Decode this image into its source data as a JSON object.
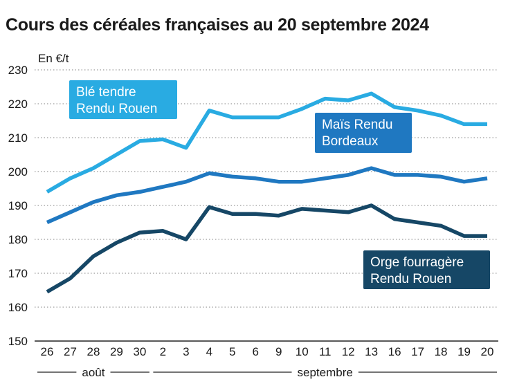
{
  "title": "Cours des céréales françaises au 20 septembre 2024",
  "chart_data": {
    "type": "line",
    "ylabel": "En €/t",
    "ylim": [
      150,
      230
    ],
    "yticks": [
      150,
      160,
      170,
      180,
      190,
      200,
      210,
      220,
      230
    ],
    "grid": "horizontal dotted",
    "categories": [
      "26",
      "27",
      "28",
      "29",
      "30",
      "2",
      "3",
      "4",
      "5",
      "6",
      "9",
      "10",
      "11",
      "12",
      "13",
      "16",
      "17",
      "18",
      "19",
      "20"
    ],
    "groups": [
      {
        "label": "août",
        "from": 0,
        "to": 4
      },
      {
        "label": "septembre",
        "from": 5,
        "to": 19
      }
    ],
    "series": [
      {
        "name": "Blé tendre Rendu Rouen",
        "label_lines": [
          "Blé tendre",
          "Rendu Rouen"
        ],
        "color": "#29abe2",
        "values": [
          194,
          198,
          201,
          205,
          209,
          209.5,
          207,
          218,
          216,
          216,
          216,
          218.5,
          221.5,
          221,
          223,
          219,
          218,
          216.5,
          214,
          214
        ]
      },
      {
        "name": "Maïs Rendu Bordeaux",
        "label_lines": [
          "Maïs Rendu",
          "Bordeaux"
        ],
        "color": "#1f78c1",
        "values": [
          185,
          188,
          191,
          193,
          194,
          195.5,
          197,
          199.5,
          198.5,
          198,
          197,
          197,
          198,
          199,
          201,
          199,
          199,
          198.5,
          197,
          198
        ]
      },
      {
        "name": "Orge fourragère Rendu Rouen",
        "label_lines": [
          "Orge fourragère",
          "Rendu Rouen"
        ],
        "color": "#164766",
        "values": [
          164.5,
          168.5,
          175,
          179,
          182,
          182.5,
          180,
          189.5,
          187.5,
          187.5,
          187,
          189,
          188.5,
          188,
          190,
          186,
          185,
          184,
          181,
          181
        ]
      }
    ]
  }
}
